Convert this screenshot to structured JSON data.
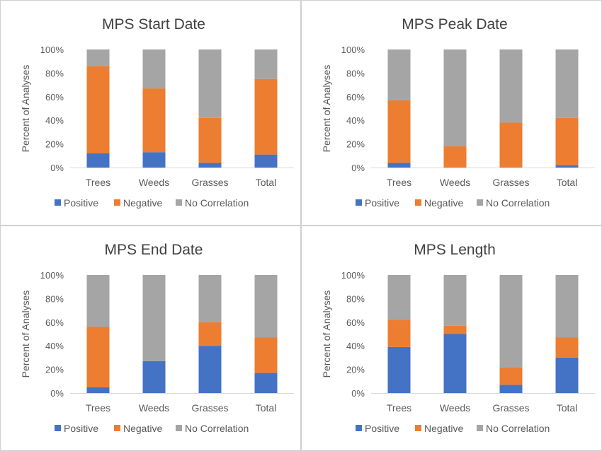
{
  "chart_data": [
    {
      "type": "bar",
      "stacked": true,
      "percent": true,
      "title": "MPS Start Date",
      "ylabel": "Percent of Analyses",
      "ylim": [
        0,
        100
      ],
      "yticks": [
        "0%",
        "20%",
        "40%",
        "60%",
        "80%",
        "100%"
      ],
      "categories": [
        "Trees",
        "Weeds",
        "Grasses",
        "Total"
      ],
      "legend_position": "bottom",
      "series": [
        {
          "name": "Positive",
          "color": "#4472c4",
          "values": [
            12,
            13,
            4,
            11
          ]
        },
        {
          "name": "Negative",
          "color": "#ed7d31",
          "values": [
            74,
            54,
            38,
            64
          ]
        },
        {
          "name": "No Correlation",
          "color": "#a5a5a5",
          "values": [
            14,
            33,
            58,
            25
          ]
        }
      ]
    },
    {
      "type": "bar",
      "stacked": true,
      "percent": true,
      "title": "MPS Peak Date",
      "ylabel": "Percent of Analyses",
      "ylim": [
        0,
        100
      ],
      "yticks": [
        "0%",
        "20%",
        "40%",
        "60%",
        "80%",
        "100%"
      ],
      "categories": [
        "Trees",
        "Weeds",
        "Grasses",
        "Total"
      ],
      "legend_position": "bottom",
      "series": [
        {
          "name": "Positive",
          "color": "#4472c4",
          "values": [
            4,
            0,
            0,
            2
          ]
        },
        {
          "name": "Negative",
          "color": "#ed7d31",
          "values": [
            53,
            18,
            38,
            40
          ]
        },
        {
          "name": "No Correlation",
          "color": "#a5a5a5",
          "values": [
            43,
            82,
            62,
            58
          ]
        }
      ]
    },
    {
      "type": "bar",
      "stacked": true,
      "percent": true,
      "title": "MPS End Date",
      "ylabel": "Percent of Analyses",
      "ylim": [
        0,
        100
      ],
      "yticks": [
        "0%",
        "20%",
        "40%",
        "60%",
        "80%",
        "100%"
      ],
      "categories": [
        "Trees",
        "Weeds",
        "Grasses",
        "Total"
      ],
      "legend_position": "bottom",
      "series": [
        {
          "name": "Positive",
          "color": "#4472c4",
          "values": [
            5,
            27,
            40,
            17
          ]
        },
        {
          "name": "Negative",
          "color": "#ed7d31",
          "values": [
            51,
            0,
            20,
            30
          ]
        },
        {
          "name": "No Correlation",
          "color": "#a5a5a5",
          "values": [
            44,
            73,
            40,
            53
          ]
        }
      ]
    },
    {
      "type": "bar",
      "stacked": true,
      "percent": true,
      "title": "MPS Length",
      "ylabel": "Percent of Analyses",
      "ylim": [
        0,
        100
      ],
      "yticks": [
        "0%",
        "20%",
        "40%",
        "60%",
        "80%",
        "100%"
      ],
      "categories": [
        "Trees",
        "Weeds",
        "Grasses",
        "Total"
      ],
      "legend_position": "bottom",
      "series": [
        {
          "name": "Positive",
          "color": "#4472c4",
          "values": [
            39,
            50,
            7,
            30
          ]
        },
        {
          "name": "Negative",
          "color": "#ed7d31",
          "values": [
            23,
            7,
            15,
            17
          ]
        },
        {
          "name": "No Correlation",
          "color": "#a5a5a5",
          "values": [
            38,
            43,
            78,
            53
          ]
        }
      ]
    }
  ]
}
